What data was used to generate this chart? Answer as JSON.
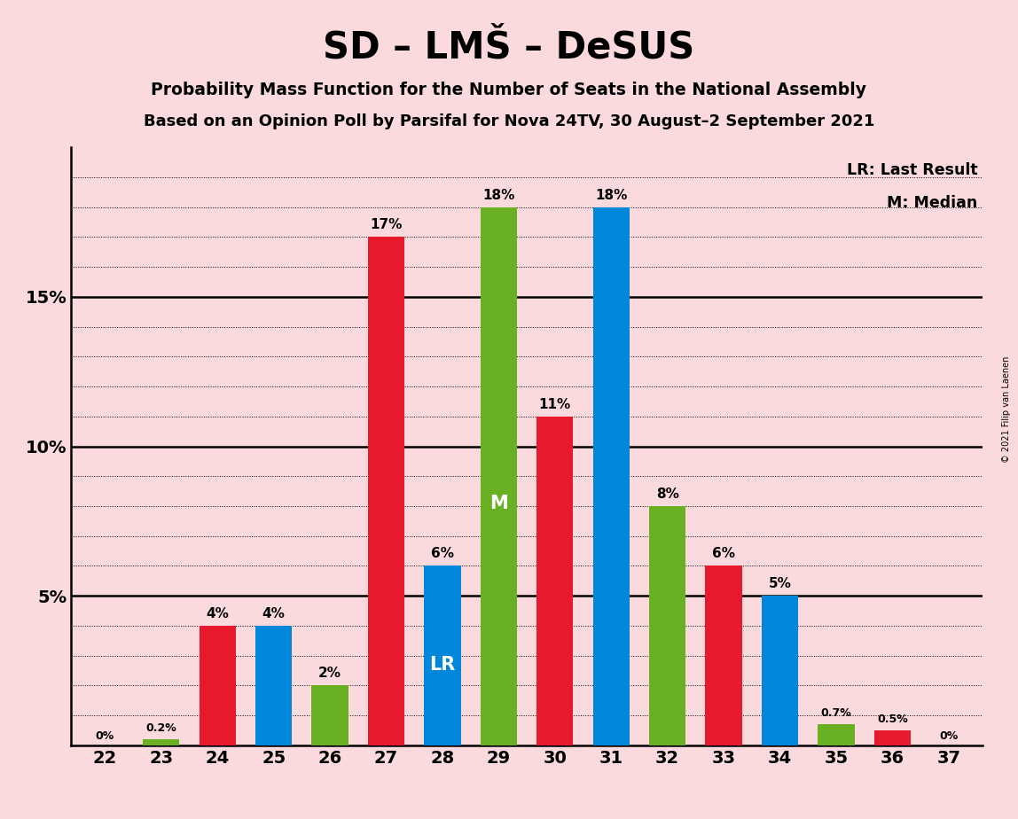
{
  "title": "SD – LMŠ – DeSUS",
  "subtitle1": "Probability Mass Function for the Number of Seats in the National Assembly",
  "subtitle2": "Based on an Opinion Poll by Parsifal for Nova 24TV, 30 August–2 September 2021",
  "copyright": "© 2021 Filip van Laenen",
  "seats": [
    22,
    23,
    24,
    25,
    26,
    27,
    28,
    29,
    30,
    31,
    32,
    33,
    34,
    35,
    36,
    37
  ],
  "values": [
    0.0,
    0.2,
    4.0,
    4.0,
    2.0,
    17.0,
    6.0,
    18.0,
    11.0,
    18.0,
    8.0,
    6.0,
    5.0,
    0.7,
    0.5,
    0.0
  ],
  "colors": [
    "#E8192C",
    "#6AB023",
    "#E8192C",
    "#0087DC",
    "#6AB023",
    "#E8192C",
    "#0087DC",
    "#6AB023",
    "#E8192C",
    "#0087DC",
    "#6AB023",
    "#E8192C",
    "#0087DC",
    "#6AB023",
    "#E8192C",
    "#0087DC"
  ],
  "labels": [
    "0%",
    "0.2%",
    "4%",
    "4%",
    "2%",
    "17%",
    "6%",
    "18%",
    "11%",
    "18%",
    "8%",
    "6%",
    "5%",
    "0.7%",
    "0.5%",
    "0%"
  ],
  "background_color": "#FADADD",
  "ylim": [
    0,
    20
  ],
  "yticks": [
    0,
    5,
    10,
    15,
    20
  ],
  "ytick_labels": [
    "",
    "5%",
    "10%",
    "15%",
    ""
  ],
  "lr_seat": 28,
  "median_seat": 29,
  "lr_label": "LR",
  "median_label": "M",
  "red_color": "#E8192C",
  "blue_color": "#0087DC",
  "green_color": "#6AB023"
}
